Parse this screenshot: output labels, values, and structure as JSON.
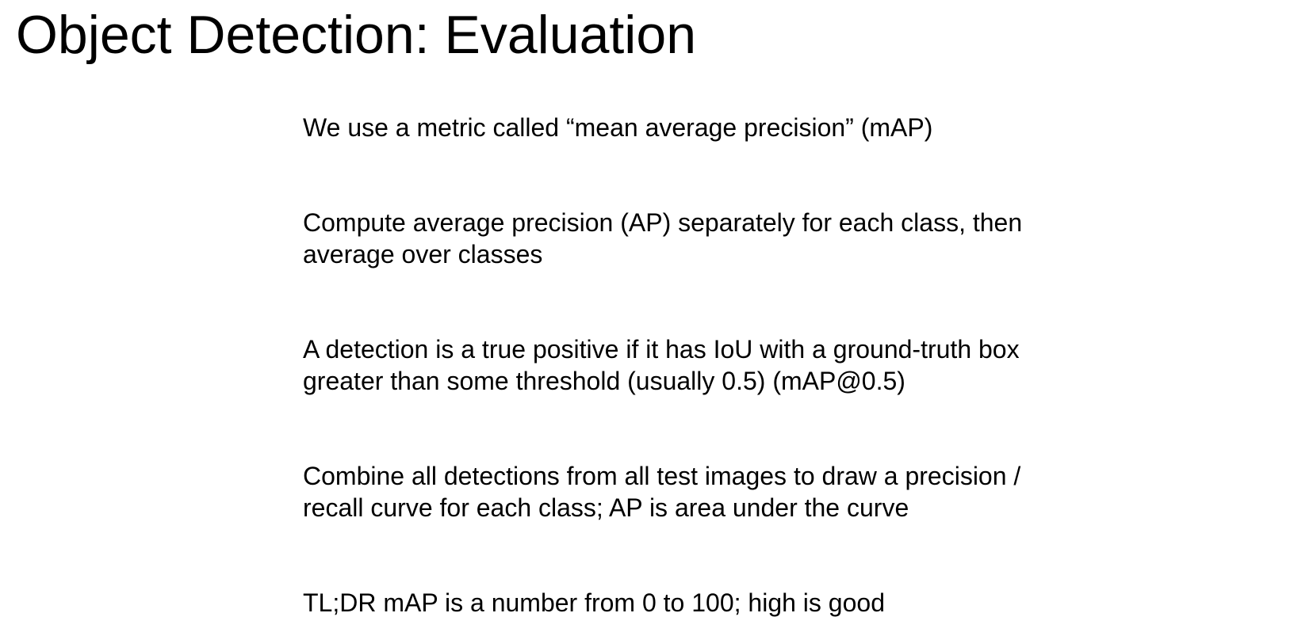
{
  "slide": {
    "title": "Object Detection: Evaluation",
    "bullets": [
      {
        "lines": [
          "We use a metric called “mean average precision” (mAP)"
        ]
      },
      {
        "lines": [
          "Compute average precision (AP) separately for each class, then",
          "average over classes"
        ]
      },
      {
        "lines": [
          "A detection is a true positive if it has IoU with a ground-truth box",
          "greater than some threshold (usually 0.5) (mAP@0.5)"
        ]
      },
      {
        "lines": [
          "Combine all detections from all test images to draw a precision /",
          "recall curve for each class; AP is area under the curve"
        ]
      },
      {
        "lines": [
          "TL;DR mAP is a number from 0 to 100; high is good"
        ]
      }
    ]
  }
}
